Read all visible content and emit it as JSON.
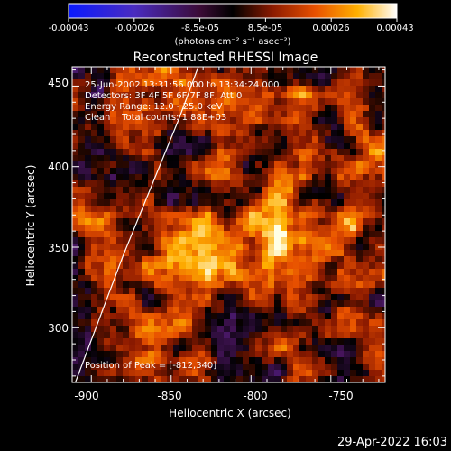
{
  "colorbar": {
    "tick_labels": [
      "-0.00043",
      "-0.00026",
      "-8.5e-05",
      "8.5e-05",
      "0.00026",
      "0.00043"
    ],
    "range": [
      -0.00043,
      0.00043
    ],
    "units": "(photons cm⁻² s⁻¹ asec⁻²)",
    "colors": [
      "#0a1aff",
      "#5a2aa8",
      "#3b0b36",
      "#000000",
      "#8a1a00",
      "#e85000",
      "#ffb000",
      "#ffff80",
      "#ffffff"
    ]
  },
  "chart_data": {
    "type": "heatmap",
    "title": "Reconstructed RHESSI Image",
    "xlabel": "Heliocentric X (arcsec)",
    "ylabel": "Heliocentric Y (arcsec)",
    "xlim": [
      -912,
      -716
    ],
    "ylim": [
      266,
      462
    ],
    "x_ticks": [
      -900,
      -850,
      -800,
      -750
    ],
    "y_ticks": [
      300,
      350,
      400,
      450
    ],
    "limb_curve": [
      [
        -910,
        266
      ],
      [
        -880,
        345
      ],
      [
        -845,
        430
      ],
      [
        -833,
        462
      ]
    ],
    "peak": [
      -812,
      340
    ],
    "annotations": [
      "25-Jun-2002 13:31:56.000 to 13:34:24.000",
      "Detectors: 3F 4F 5F 6F 7F 8F, Att 0",
      "Energy Range: 12.0 - 25.0 keV",
      "Clean    Total counts: 1.88E+03"
    ],
    "peak_label": "Position of Peak = [-812,340]"
  },
  "footer": {
    "timestamp": "29-Apr-2022 16:03"
  }
}
